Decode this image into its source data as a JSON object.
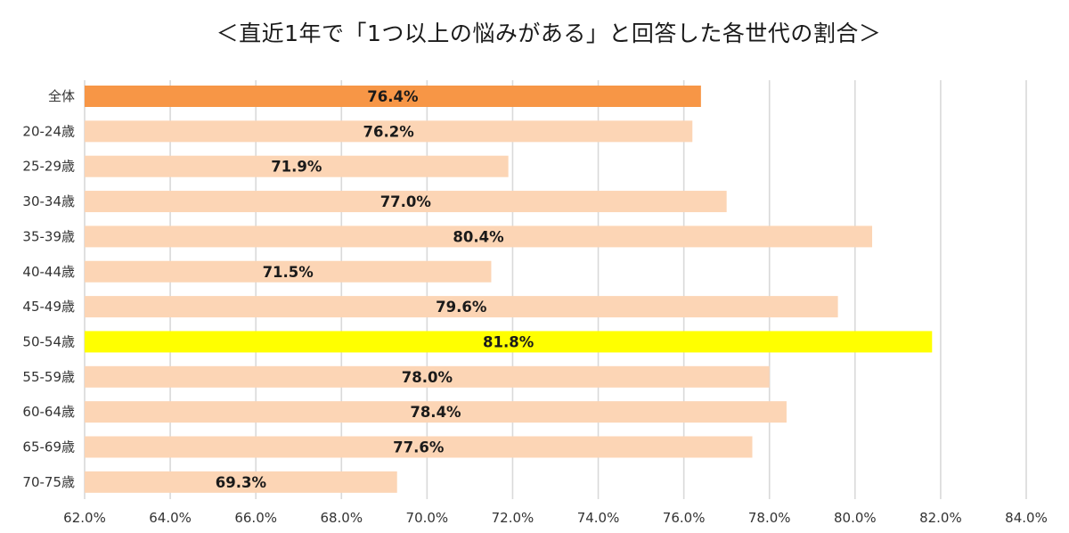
{
  "chart_data": {
    "type": "bar",
    "orientation": "horizontal",
    "title": "＜直近1年で「1つ以上の悩みがある」と回答した各世代の割合＞",
    "categories": [
      "全体",
      "20-24歳",
      "25-29歳",
      "30-34歳",
      "35-39歳",
      "40-44歳",
      "45-49歳",
      "50-54歳",
      "55-59歳",
      "60-64歳",
      "65-69歳",
      "70-75歳"
    ],
    "values": [
      76.4,
      76.2,
      71.9,
      77.0,
      80.4,
      71.5,
      79.6,
      81.8,
      78.0,
      78.4,
      77.6,
      69.3
    ],
    "value_labels": [
      "76.4%",
      "76.2%",
      "71.9%",
      "77.0%",
      "80.4%",
      "71.5%",
      "79.6%",
      "81.8%",
      "78.0%",
      "78.4%",
      "77.6%",
      "69.3%"
    ],
    "bar_colors": [
      "#F79646",
      "#FCD5B5",
      "#FCD5B5",
      "#FCD5B5",
      "#FCD5B5",
      "#FCD5B5",
      "#FCD5B5",
      "#FFFF00",
      "#FCD5B5",
      "#FCD5B5",
      "#FCD5B5",
      "#FCD5B5"
    ],
    "xlim": [
      62.0,
      84.0
    ],
    "xticks": [
      62.0,
      64.0,
      66.0,
      68.0,
      70.0,
      72.0,
      74.0,
      76.0,
      78.0,
      80.0,
      82.0,
      84.0
    ],
    "xtick_labels": [
      "62.0%",
      "64.0%",
      "66.0%",
      "68.0%",
      "70.0%",
      "72.0%",
      "74.0%",
      "76.0%",
      "78.0%",
      "80.0%",
      "82.0%",
      "84.0%"
    ],
    "grid": true,
    "gridline_color": "#D9D9D9",
    "xlabel": "",
    "ylabel": ""
  }
}
